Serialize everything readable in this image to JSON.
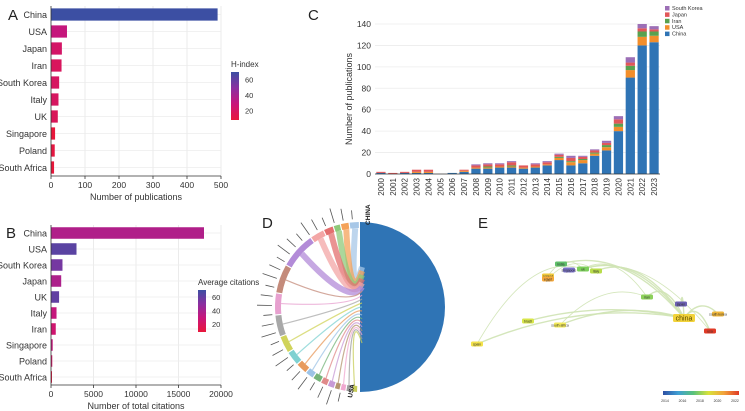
{
  "panel_labels": {
    "a": "A",
    "b": "B",
    "c": "C",
    "d": "D",
    "e": "E"
  },
  "legend_colors": {
    "China": "#2f74b5",
    "USA": "#f28e2b",
    "Iran": "#59a14f",
    "Japan": "#e15759",
    "South Korea": "#9c6fb6"
  },
  "chord": {
    "highlight_labels": [
      "CHINA",
      "USA"
    ],
    "china_color": "#2f74b5"
  },
  "network": {
    "nodes": [
      {
        "label": "china",
        "color": "#f2d33b"
      },
      {
        "label": "south korea",
        "color": "#f0b63a"
      },
      {
        "label": "usa",
        "color": "#e03a26"
      },
      {
        "label": "japan",
        "color": "#6a5fb0"
      },
      {
        "label": "iran",
        "color": "#8cd05a"
      },
      {
        "label": "uk",
        "color": "#7ccf5a"
      },
      {
        "label": "italy",
        "color": "#b8dc4a"
      },
      {
        "label": "india",
        "color": "#5fbf6a"
      },
      {
        "label": "singapore",
        "color": "#7a72c8"
      },
      {
        "label": "poland",
        "color": "#f0c83a"
      },
      {
        "label": "south africa",
        "color": "#f3ea5a"
      },
      {
        "label": "brazil",
        "color": "#d8e64a"
      },
      {
        "label": "egypt",
        "color": "#f5a83a"
      },
      {
        "label": "spain",
        "color": "#f3e24a"
      }
    ],
    "timeline_ticks": [
      "2014",
      "2016",
      "2018",
      "2020",
      "2022"
    ]
  },
  "chart_data": [
    {
      "id": "A",
      "type": "bar",
      "orientation": "horizontal",
      "categories": [
        "China",
        "USA",
        "Japan",
        "Iran",
        "South Korea",
        "Italy",
        "UK",
        "Singapore",
        "Poland",
        "South Africa"
      ],
      "values": [
        490,
        47,
        32,
        31,
        24,
        22,
        20,
        12,
        11,
        9
      ],
      "color_values": [
        80,
        30,
        22,
        19,
        20,
        20,
        18,
        8,
        10,
        8
      ],
      "color_ticks": [
        20,
        40,
        60
      ],
      "xlabel": "Number of publications",
      "xlim": [
        0,
        500
      ],
      "xticks": [
        0,
        100,
        200,
        300,
        400,
        500
      ],
      "legend_title": "H-index",
      "legend": "right"
    },
    {
      "id": "B",
      "type": "bar",
      "orientation": "horizontal",
      "categories": [
        "China",
        "USA",
        "South Korea",
        "Japan",
        "UK",
        "Italy",
        "Iran",
        "Singapore",
        "Poland",
        "South Africa"
      ],
      "values": [
        18000,
        3000,
        1350,
        1200,
        950,
        650,
        560,
        200,
        150,
        60
      ],
      "color_values": [
        37,
        62,
        55,
        38,
        60,
        30,
        25,
        30,
        22,
        10
      ],
      "color_ticks": [
        20,
        40,
        60
      ],
      "xlabel": "Number of total citations",
      "xlim": [
        0,
        20000
      ],
      "xticks": [
        0,
        5000,
        10000,
        15000,
        20000
      ],
      "legend_title": "Average citations",
      "legend": "right"
    },
    {
      "id": "C",
      "type": "bar",
      "stacked": true,
      "categories": [
        "2000",
        "2001",
        "2002",
        "2003",
        "2004",
        "2005",
        "2006",
        "2007",
        "2008",
        "2009",
        "2010",
        "2011",
        "2012",
        "2013",
        "2014",
        "2015",
        "2016",
        "2017",
        "2018",
        "2019",
        "2020",
        "2021",
        "2022",
        "2023"
      ],
      "series": [
        {
          "name": "China",
          "values": [
            1,
            0,
            1,
            1,
            1,
            0,
            1,
            2,
            5,
            5,
            6,
            6,
            5,
            6,
            8,
            13,
            8,
            10,
            17,
            22,
            40,
            90,
            120,
            123
          ]
        },
        {
          "name": "USA",
          "values": [
            0,
            0,
            0,
            1,
            1,
            0,
            0,
            1,
            1,
            1,
            1,
            1,
            1,
            1,
            1,
            2,
            3,
            3,
            2,
            3,
            4,
            7,
            8,
            6
          ]
        },
        {
          "name": "Iran",
          "values": [
            0,
            0,
            0,
            0,
            0,
            0,
            0,
            0,
            0,
            1,
            0,
            1,
            0,
            0,
            0,
            1,
            1,
            1,
            1,
            2,
            3,
            4,
            5,
            4
          ]
        },
        {
          "name": "Japan",
          "values": [
            1,
            1,
            1,
            2,
            2,
            0,
            0,
            1,
            2,
            2,
            2,
            3,
            2,
            2,
            2,
            2,
            3,
            2,
            2,
            2,
            4,
            3,
            3,
            2
          ]
        },
        {
          "name": "South Korea",
          "values": [
            0,
            0,
            0,
            0,
            0,
            0,
            0,
            0,
            1,
            1,
            1,
            1,
            0,
            1,
            1,
            1,
            2,
            1,
            1,
            2,
            3,
            5,
            4,
            3
          ]
        }
      ],
      "ylabel": "Number of publications",
      "ylim": [
        0,
        140
      ],
      "yticks": [
        0,
        20,
        40,
        60,
        80,
        100,
        120,
        140
      ],
      "legend": "top-right",
      "legend_order": [
        "South Korea",
        "Japan",
        "Iran",
        "USA",
        "China"
      ]
    }
  ]
}
